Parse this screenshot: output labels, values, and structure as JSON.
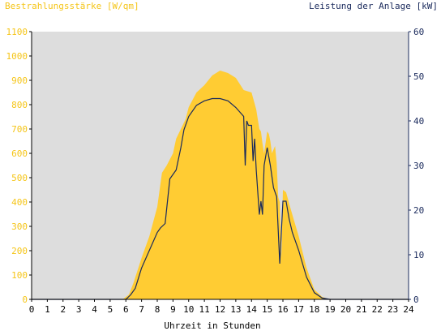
{
  "chart_data": {
    "type": "area",
    "left_axis_title": "Bestrahlungsstärke [W/qm]",
    "right_axis_title": "Leistung der Anlage [kW]",
    "xlabel": "Uhrzeit in Stunden",
    "x_range": [
      0,
      24
    ],
    "x_ticks": [
      "0",
      "1",
      "2",
      "3",
      "4",
      "5",
      "6",
      "7",
      "8",
      "9",
      "10",
      "11",
      "12",
      "13",
      "14",
      "15",
      "16",
      "17",
      "18",
      "19",
      "20",
      "21",
      "22",
      "23",
      "24"
    ],
    "left_range": [
      0,
      1100
    ],
    "left_ticks": [
      "0",
      "100",
      "200",
      "300",
      "400",
      "500",
      "600",
      "700",
      "800",
      "900",
      "1000",
      "1100"
    ],
    "right_range": [
      0,
      60
    ],
    "right_ticks": [
      "0",
      "10",
      "20",
      "30",
      "40",
      "50",
      "60"
    ],
    "colors": {
      "irradiance_fill": "#ffcc33",
      "power_line": "#1a2a5c",
      "left_axis_text": "#f5c518",
      "right_axis_text": "#1a2a5c",
      "plot_bg": "#dddddd"
    },
    "series": [
      {
        "kind": "area",
        "axis": "left",
        "x": [
          0,
          5.8,
          6.2,
          6.5,
          7,
          7.5,
          8,
          8.3,
          8.6,
          9,
          9.2,
          9.5,
          9.8,
          10,
          10.5,
          11,
          11.5,
          12,
          12.5,
          13,
          13.5,
          14,
          14.3,
          14.5,
          14.6,
          14.7,
          14.8,
          15,
          15.1,
          15.2,
          15.3,
          15.5,
          15.6,
          15.7,
          15.8,
          15.9,
          16,
          16.2,
          16.5,
          17,
          17.5,
          18,
          18.5,
          19,
          24
        ],
        "y": [
          0,
          0,
          20,
          70,
          170,
          260,
          380,
          520,
          550,
          600,
          660,
          700,
          740,
          790,
          850,
          880,
          920,
          940,
          930,
          910,
          860,
          850,
          780,
          700,
          690,
          640,
          600,
          690,
          680,
          650,
          600,
          630,
          560,
          420,
          400,
          170,
          450,
          440,
          370,
          260,
          130,
          40,
          10,
          0,
          0
        ]
      },
      {
        "kind": "line",
        "axis": "right",
        "x": [
          0,
          6,
          6.3,
          6.6,
          7,
          7.5,
          8,
          8.2,
          8.5,
          8.8,
          9,
          9.2,
          9.5,
          9.7,
          10,
          10.5,
          11,
          11.5,
          12,
          12.5,
          13,
          13.5,
          13.6,
          13.7,
          13.8,
          14,
          14.1,
          14.2,
          14.3,
          14.5,
          14.6,
          14.7,
          14.8,
          15,
          15.2,
          15.4,
          15.6,
          15.8,
          16,
          16.2,
          16.4,
          16.6,
          17,
          17.5,
          18,
          18.5,
          19,
          24
        ],
        "y": [
          0,
          0,
          1,
          2.5,
          7,
          11,
          15,
          16,
          17,
          27,
          28,
          29,
          34,
          38,
          41,
          43.5,
          44.5,
          45,
          45,
          44.5,
          43,
          41,
          30,
          40,
          39,
          39,
          31,
          36,
          29,
          19,
          22,
          19,
          30,
          34,
          30,
          25,
          23,
          8,
          22,
          22,
          18,
          15,
          11,
          5,
          1.5,
          0.3,
          0,
          0
        ]
      }
    ]
  }
}
